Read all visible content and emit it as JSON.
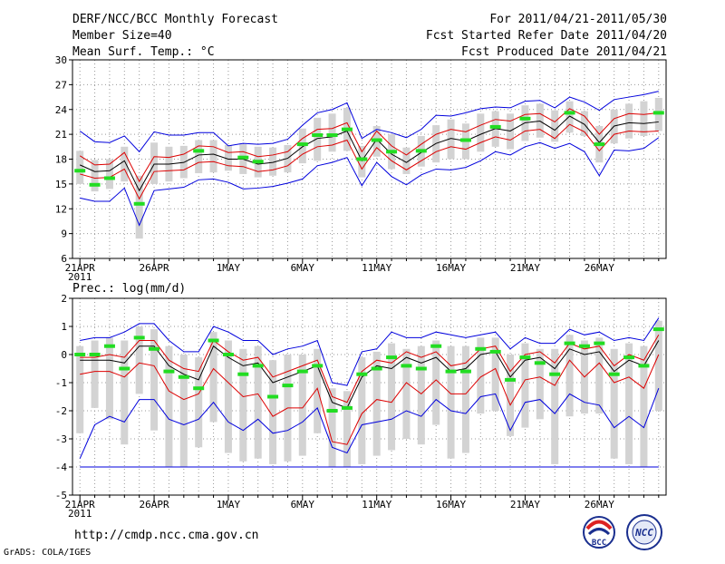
{
  "header": {
    "left1": "DERF/NCC/BCC Monthly Forecast",
    "left2": "Member Size=40",
    "left3": "Mean Surf. Temp.: °C",
    "right1": "For 2011/04/21-2011/05/30",
    "right2": "Fcst Started Refer Date 2011/04/20",
    "right3": "Fcst Produced Date 2011/04/21"
  },
  "footer": {
    "url": "http://cmdp.ncc.cma.gov.cn",
    "credit": "GrADS: COLA/IGES",
    "logo_bcc": "BCC",
    "logo_ncc": "NCC"
  },
  "x_axis": {
    "labels": [
      "21APR",
      "26APR",
      "1MAY",
      "6MAY",
      "11MAY",
      "16MAY",
      "21MAY",
      "26MAY"
    ],
    "label_days": [
      0,
      5,
      10,
      15,
      20,
      25,
      30,
      35
    ],
    "year": "2011",
    "n_days": 40
  },
  "chart_data": [
    {
      "type": "line",
      "title": "Mean Surf. Temp.: °C",
      "ylim": [
        6,
        30
      ],
      "yticks": [
        6,
        9,
        12,
        15,
        18,
        21,
        24,
        27,
        30
      ],
      "colors": {
        "mean": "#000000",
        "spread": "#dd0000",
        "extreme": "#0000dd",
        "obs": "#22dd22",
        "box": "#d3d3d3"
      },
      "series": {
        "mean": [
          17.3,
          16.5,
          16.6,
          17.8,
          14.2,
          17.4,
          17.4,
          17.6,
          18.5,
          18.6,
          18.0,
          18.0,
          17.4,
          17.6,
          18.1,
          19.5,
          20.5,
          20.7,
          21.4,
          17.8,
          20.4,
          18.6,
          17.6,
          18.8,
          19.9,
          20.5,
          20.2,
          21.0,
          21.7,
          21.4,
          22.4,
          22.6,
          21.5,
          23.2,
          22.2,
          20.0,
          22.0,
          22.4,
          22.3,
          22.5
        ],
        "upper": [
          18.4,
          17.3,
          17.4,
          18.8,
          15.3,
          18.3,
          18.2,
          18.6,
          19.6,
          19.5,
          18.8,
          18.9,
          18.3,
          18.5,
          18.9,
          20.5,
          21.6,
          21.7,
          22.4,
          18.9,
          21.4,
          19.6,
          18.5,
          19.8,
          21.0,
          21.6,
          21.3,
          22.1,
          22.8,
          22.6,
          23.4,
          23.5,
          22.5,
          24.1,
          23.2,
          21.0,
          22.9,
          23.5,
          23.4,
          23.6
        ],
        "lower": [
          16.2,
          15.7,
          15.8,
          16.8,
          13.2,
          16.5,
          16.6,
          16.7,
          17.6,
          17.7,
          17.2,
          17.1,
          16.5,
          16.7,
          17.2,
          18.6,
          19.5,
          19.7,
          20.3,
          16.8,
          19.4,
          17.8,
          16.7,
          17.8,
          18.9,
          19.5,
          19.2,
          20.0,
          20.7,
          20.3,
          21.4,
          21.6,
          20.5,
          22.2,
          21.3,
          19.0,
          21.0,
          21.4,
          21.3,
          21.4
        ],
        "max": [
          21.4,
          20.1,
          20.0,
          20.8,
          18.9,
          21.3,
          20.9,
          20.9,
          21.2,
          21.2,
          19.6,
          19.9,
          19.8,
          19.9,
          20.4,
          22.1,
          23.6,
          24.0,
          24.8,
          20.5,
          21.6,
          21.2,
          20.6,
          21.6,
          23.3,
          23.2,
          23.6,
          24.1,
          24.3,
          24.2,
          25.0,
          25.1,
          24.2,
          25.5,
          24.9,
          23.9,
          25.2,
          25.5,
          25.8,
          26.2
        ],
        "min": [
          13.3,
          12.9,
          12.9,
          14.5,
          10.0,
          14.2,
          14.4,
          14.6,
          15.5,
          15.6,
          15.2,
          14.4,
          14.5,
          14.7,
          15.1,
          15.6,
          17.2,
          17.6,
          18.2,
          14.8,
          17.6,
          15.9,
          14.9,
          16.1,
          16.8,
          16.7,
          17.0,
          17.8,
          18.9,
          18.5,
          19.5,
          20.0,
          19.3,
          19.9,
          18.9,
          16.0,
          19.1,
          19.0,
          19.3,
          20.6
        ],
        "obs": [
          16.6,
          14.9,
          15.7,
          null,
          12.6,
          null,
          null,
          null,
          19.0,
          null,
          null,
          18.2,
          17.7,
          null,
          null,
          19.8,
          20.9,
          20.9,
          21.6,
          18.0,
          20.3,
          18.9,
          null,
          19.0,
          null,
          null,
          20.3,
          null,
          21.9,
          null,
          22.9,
          null,
          null,
          23.6,
          null,
          19.8,
          null,
          null,
          null,
          23.6
        ],
        "box_hi": [
          19.0,
          17.9,
          18.0,
          19.5,
          16.0,
          20.0,
          19.5,
          19.6,
          20.3,
          20.3,
          19.7,
          19.8,
          19.5,
          19.4,
          19.7,
          21.7,
          23.0,
          23.5,
          24.2,
          19.6,
          22.0,
          21.0,
          19.4,
          20.8,
          22.1,
          22.8,
          22.3,
          23.5,
          23.8,
          23.5,
          24.5,
          24.7,
          23.9,
          25.0,
          23.8,
          22.0,
          24.0,
          24.7,
          25.0,
          25.4
        ],
        "box_lo": [
          15.0,
          14.1,
          14.4,
          15.3,
          8.4,
          15.0,
          15.3,
          15.7,
          16.3,
          16.4,
          16.6,
          16.2,
          15.8,
          16.0,
          16.4,
          17.5,
          17.8,
          18.9,
          19.0,
          15.8,
          18.3,
          16.8,
          16.2,
          17.1,
          17.6,
          18.0,
          18.0,
          18.9,
          19.5,
          19.2,
          20.2,
          20.6,
          20.1,
          21.2,
          20.8,
          17.6,
          19.9,
          20.5,
          20.8,
          21.4
        ]
      }
    },
    {
      "type": "line",
      "title": "Prec.: log(mm/d)",
      "ylim": [
        -5,
        2
      ],
      "yticks": [
        -5,
        -4,
        -3,
        -2,
        -1,
        0,
        1,
        2
      ],
      "colors": {
        "mean": "#000000",
        "spread": "#dd0000",
        "extreme": "#0000dd",
        "obs": "#22dd22",
        "box": "#d3d3d3"
      },
      "series": {
        "mean": [
          -0.2,
          -0.2,
          -0.2,
          -0.3,
          0.3,
          0.3,
          -0.4,
          -0.7,
          -0.9,
          0.3,
          -0.1,
          -0.4,
          -0.3,
          -1.0,
          -0.8,
          -0.6,
          -0.4,
          -1.7,
          -1.9,
          -0.8,
          -0.4,
          -0.5,
          -0.1,
          -0.3,
          -0.1,
          -0.6,
          -0.5,
          0.0,
          0.1,
          -0.8,
          -0.2,
          -0.1,
          -0.5,
          0.2,
          0.0,
          0.1,
          -0.6,
          -0.2,
          -0.4,
          0.5
        ],
        "upper": [
          -0.1,
          -0.1,
          0.0,
          -0.1,
          0.5,
          0.5,
          -0.2,
          -0.5,
          -0.6,
          0.5,
          0.1,
          -0.2,
          -0.1,
          -0.8,
          -0.6,
          -0.4,
          -0.2,
          -1.5,
          -1.7,
          -0.6,
          -0.2,
          -0.3,
          0.1,
          -0.1,
          0.1,
          -0.4,
          -0.3,
          0.2,
          0.3,
          -0.6,
          0.0,
          0.1,
          -0.3,
          0.4,
          0.2,
          0.3,
          -0.4,
          0.0,
          -0.2,
          0.7
        ],
        "lower": [
          -0.7,
          -0.6,
          -0.6,
          -0.8,
          -0.3,
          -0.4,
          -1.3,
          -1.6,
          -1.4,
          -0.5,
          -1.0,
          -1.5,
          -1.4,
          -2.2,
          -1.9,
          -1.9,
          -1.2,
          -3.1,
          -3.2,
          -2.1,
          -1.6,
          -1.7,
          -1.0,
          -1.4,
          -0.9,
          -1.4,
          -1.4,
          -0.8,
          -0.5,
          -1.8,
          -0.9,
          -0.8,
          -1.1,
          -0.2,
          -0.8,
          -0.3,
          -1.0,
          -0.8,
          -1.2,
          0.0
        ],
        "max": [
          0.5,
          0.6,
          0.6,
          0.8,
          1.1,
          1.1,
          0.5,
          0.1,
          0.1,
          1.0,
          0.8,
          0.5,
          0.5,
          0.0,
          0.2,
          0.3,
          0.5,
          -1.0,
          -1.1,
          0.1,
          0.2,
          0.8,
          0.6,
          0.6,
          0.8,
          0.7,
          0.6,
          0.7,
          0.8,
          0.2,
          0.6,
          0.4,
          0.4,
          0.9,
          0.7,
          0.8,
          0.5,
          0.6,
          0.5,
          1.3
        ],
        "min": [
          -3.7,
          -2.5,
          -2.2,
          -2.4,
          -1.6,
          -1.6,
          -2.3,
          -2.5,
          -2.3,
          -1.7,
          -2.4,
          -2.7,
          -2.3,
          -2.8,
          -2.7,
          -2.4,
          -1.9,
          -3.3,
          -3.5,
          -2.5,
          -2.4,
          -2.3,
          -2.0,
          -2.2,
          -1.6,
          -2.0,
          -2.1,
          -1.5,
          -1.4,
          -2.7,
          -1.7,
          -1.6,
          -2.1,
          -1.4,
          -1.7,
          -1.8,
          -2.6,
          -2.2,
          -2.6,
          -1.2
        ],
        "obs": [
          0.0,
          0.0,
          0.3,
          -0.5,
          0.6,
          0.2,
          -0.6,
          -0.8,
          -1.2,
          0.5,
          0.0,
          -0.7,
          -0.4,
          -1.5,
          -1.1,
          -0.6,
          -0.4,
          -2.0,
          -1.9,
          -0.7,
          -0.5,
          -0.1,
          -0.4,
          -0.5,
          0.3,
          -0.6,
          -0.6,
          0.2,
          0.1,
          -0.9,
          -0.1,
          -0.3,
          -0.7,
          0.4,
          0.3,
          0.4,
          -0.7,
          -0.1,
          -0.4,
          0.9
        ],
        "box_hi": [
          0.3,
          0.5,
          0.6,
          0.5,
          1.0,
          0.9,
          0.3,
          0.0,
          -0.1,
          0.8,
          0.5,
          0.2,
          0.3,
          -0.2,
          0.0,
          0.0,
          0.2,
          -1.2,
          -1.3,
          -0.1,
          0.1,
          0.4,
          0.2,
          0.3,
          0.5,
          0.3,
          0.3,
          0.6,
          0.6,
          0.0,
          0.4,
          0.2,
          0.2,
          0.7,
          0.5,
          0.6,
          0.2,
          0.4,
          0.3,
          1.2
        ],
        "box_lo": [
          -2.8,
          -1.9,
          -2.3,
          -3.2,
          -1.4,
          -2.7,
          -4.0,
          -4.0,
          -3.3,
          -2.4,
          -3.5,
          -3.8,
          -3.7,
          -3.9,
          -3.8,
          -3.6,
          -2.8,
          -4.0,
          -4.0,
          -3.9,
          -3.6,
          -3.4,
          -3.0,
          -3.2,
          -2.5,
          -3.7,
          -3.5,
          -2.1,
          -2.0,
          -2.9,
          -2.6,
          -2.3,
          -3.9,
          -2.2,
          -2.1,
          -2.1,
          -3.7,
          -3.9,
          -4.0,
          -2.0
        ],
        "floor": -4
      }
    }
  ]
}
